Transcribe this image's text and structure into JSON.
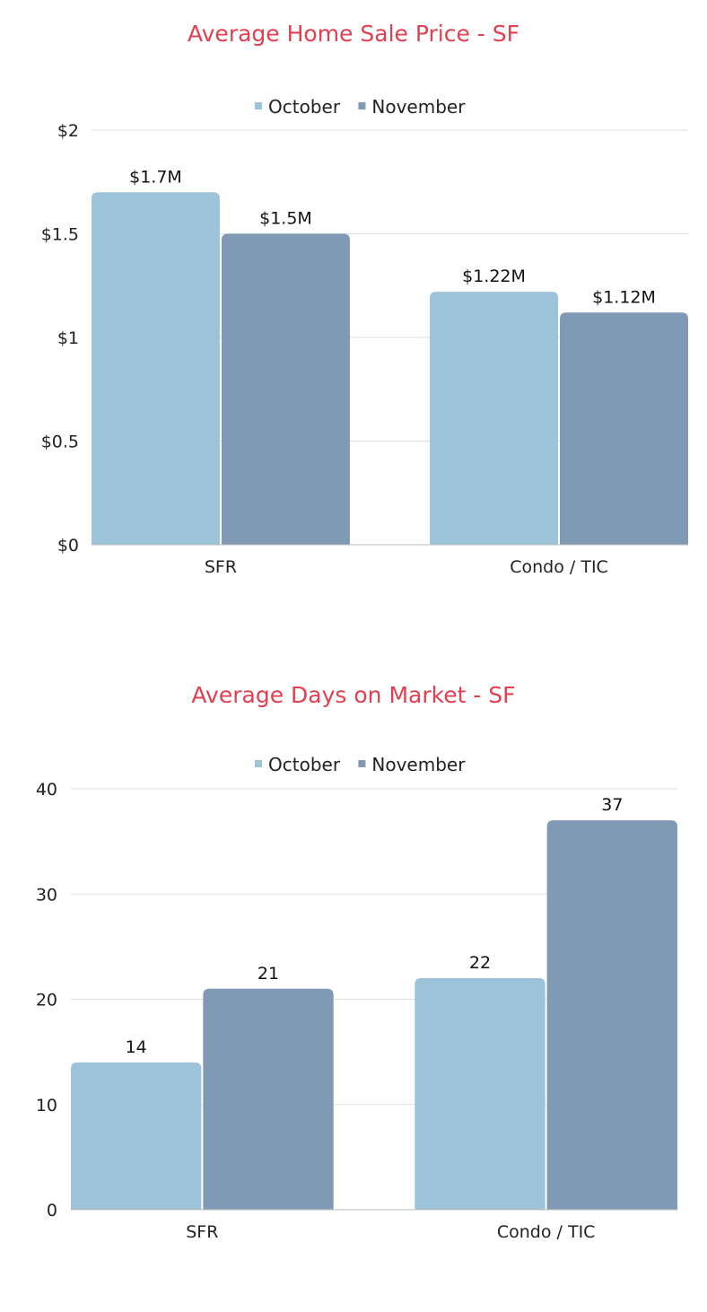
{
  "colors": {
    "title": "#e0404f",
    "october": "#9dc3da",
    "november": "#809ab6",
    "grid": "#dddddd",
    "axis": "#b8b8b8"
  },
  "chart_data": [
    {
      "type": "bar",
      "title": "Average Home Sale Price - SF",
      "categories": [
        "SFR",
        "Condo / TIC"
      ],
      "series": [
        {
          "name": "October",
          "values": [
            1.7,
            1.22
          ],
          "labels": [
            "$1.7M",
            "$1.22M"
          ]
        },
        {
          "name": "November",
          "values": [
            1.5,
            1.12
          ],
          "labels": [
            "$1.5M",
            "$1.12M"
          ]
        }
      ],
      "ylim": [
        0,
        2
      ],
      "ticks": [
        0,
        0.5,
        1,
        1.5,
        2
      ],
      "tick_labels": [
        "$0",
        "$0.5",
        "$1",
        "$1.5",
        "$2"
      ],
      "grid": true,
      "legend": "top-center"
    },
    {
      "type": "bar",
      "title": "Average Days on Market - SF",
      "categories": [
        "SFR",
        "Condo / TIC"
      ],
      "series": [
        {
          "name": "October",
          "values": [
            14,
            22
          ],
          "labels": [
            "14",
            "22"
          ]
        },
        {
          "name": "November",
          "values": [
            21,
            37
          ],
          "labels": [
            "21",
            "37"
          ]
        }
      ],
      "ylim": [
        0,
        40
      ],
      "ticks": [
        0,
        10,
        20,
        30,
        40
      ],
      "tick_labels": [
        "0",
        "10",
        "20",
        "30",
        "40"
      ],
      "grid": true,
      "legend": "top-center"
    }
  ]
}
